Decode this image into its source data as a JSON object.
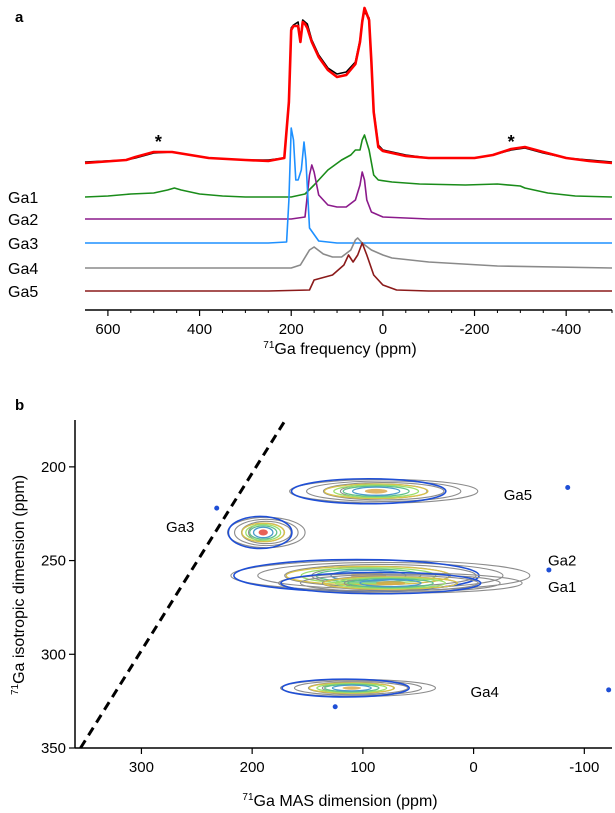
{
  "chart_data": [
    {
      "panel": "a",
      "type": "line",
      "xlabel_sup": "71",
      "xlabel": "Ga frequency (ppm)",
      "xlim": [
        650,
        -500
      ],
      "x_reversed": true,
      "xticks": [
        600,
        400,
        200,
        0,
        -200,
        -400
      ],
      "xtick_labels": [
        "600",
        "400",
        "200",
        "0",
        "-200",
        "-400"
      ],
      "annotations": [
        "*",
        "*"
      ],
      "annotation_x": [
        490,
        -280
      ],
      "series": [
        {
          "name": "",
          "color": "#000000",
          "points": [
            [
              650,
              162
            ],
            [
              560,
              160
            ],
            [
              540,
              158
            ],
            [
              500,
              153
            ],
            [
              460,
              152
            ],
            [
              420,
              155
            ],
            [
              380,
              158
            ],
            [
              300,
              160
            ],
            [
              250,
              160
            ],
            [
              215,
              158
            ],
            [
              205,
              100
            ],
            [
              200,
              28
            ],
            [
              195,
              25
            ],
            [
              185,
              22
            ],
            [
              180,
              40
            ],
            [
              175,
              20
            ],
            [
              170,
              22
            ],
            [
              165,
              24
            ],
            [
              155,
              40
            ],
            [
              140,
              55
            ],
            [
              120,
              68
            ],
            [
              100,
              74
            ],
            [
              80,
              72
            ],
            [
              60,
              62
            ],
            [
              50,
              40
            ],
            [
              45,
              20
            ],
            [
              40,
              12
            ],
            [
              30,
              18
            ],
            [
              25,
              60
            ],
            [
              20,
              110
            ],
            [
              10,
              145
            ],
            [
              0,
              150
            ],
            [
              -50,
              155
            ],
            [
              -100,
              158
            ],
            [
              -200,
              158
            ],
            [
              -240,
              155
            ],
            [
              -280,
              150
            ],
            [
              -310,
              148
            ],
            [
              -350,
              153
            ],
            [
              -400,
              158
            ],
            [
              -450,
              160
            ],
            [
              -500,
              162
            ]
          ]
        },
        {
          "name": "",
          "color": "#ff0000",
          "points": [
            [
              650,
              163
            ],
            [
              560,
              160
            ],
            [
              540,
              157
            ],
            [
              500,
              152
            ],
            [
              460,
              152
            ],
            [
              420,
              155
            ],
            [
              380,
              158
            ],
            [
              300,
              160
            ],
            [
              250,
              161
            ],
            [
              215,
              158
            ],
            [
              205,
              102
            ],
            [
              200,
              30
            ],
            [
              195,
              26
            ],
            [
              185,
              26
            ],
            [
              180,
              42
            ],
            [
              175,
              22
            ],
            [
              170,
              24
            ],
            [
              165,
              28
            ],
            [
              155,
              42
            ],
            [
              140,
              57
            ],
            [
              120,
              70
            ],
            [
              100,
              77
            ],
            [
              80,
              75
            ],
            [
              60,
              64
            ],
            [
              50,
              42
            ],
            [
              45,
              22
            ],
            [
              40,
              8
            ],
            [
              30,
              20
            ],
            [
              25,
              62
            ],
            [
              20,
              112
            ],
            [
              10,
              147
            ],
            [
              0,
              151
            ],
            [
              -50,
              156
            ],
            [
              -100,
              158
            ],
            [
              -200,
              158
            ],
            [
              -240,
              155
            ],
            [
              -280,
              149
            ],
            [
              -310,
              147
            ],
            [
              -350,
              152
            ],
            [
              -400,
              158
            ],
            [
              -450,
              161
            ],
            [
              -500,
              163
            ]
          ]
        },
        {
          "name": "Ga1",
          "color": "#1a8c1a",
          "points": [
            [
              650,
              197
            ],
            [
              600,
              196
            ],
            [
              550,
              194
            ],
            [
              500,
              193
            ],
            [
              470,
              190
            ],
            [
              455,
              188
            ],
            [
              440,
              190
            ],
            [
              400,
              194
            ],
            [
              350,
              196
            ],
            [
              300,
              197
            ],
            [
              250,
              197
            ],
            [
              200,
              197
            ],
            [
              170,
              194
            ],
            [
              150,
              185
            ],
            [
              120,
              170
            ],
            [
              90,
              160
            ],
            [
              70,
              155
            ],
            [
              60,
              150
            ],
            [
              50,
              150
            ],
            [
              45,
              140
            ],
            [
              40,
              135
            ],
            [
              30,
              150
            ],
            [
              20,
              175
            ],
            [
              10,
              180
            ],
            [
              -20,
              182
            ],
            [
              -80,
              184
            ],
            [
              -180,
              185
            ],
            [
              -250,
              184
            ],
            [
              -300,
              186
            ],
            [
              -310,
              188
            ],
            [
              -360,
              193
            ],
            [
              -420,
              196
            ],
            [
              -500,
              197
            ]
          ]
        },
        {
          "name": "Ga2",
          "color": "#8b1a8b",
          "points": [
            [
              650,
              219
            ],
            [
              300,
              219
            ],
            [
              200,
              219
            ],
            [
              170,
              217
            ],
            [
              160,
              175
            ],
            [
              155,
              165
            ],
            [
              150,
              172
            ],
            [
              140,
              195
            ],
            [
              120,
              205
            ],
            [
              100,
              207
            ],
            [
              80,
              207
            ],
            [
              60,
              200
            ],
            [
              50,
              185
            ],
            [
              45,
              172
            ],
            [
              40,
              180
            ],
            [
              35,
              200
            ],
            [
              25,
              212
            ],
            [
              0,
              217
            ],
            [
              -100,
              219
            ],
            [
              -500,
              219
            ]
          ]
        },
        {
          "name": "Ga3",
          "color": "#1e90ff",
          "points": [
            [
              650,
              243
            ],
            [
              250,
              243
            ],
            [
              210,
              242
            ],
            [
              205,
              200
            ],
            [
              200,
              128
            ],
            [
              195,
              140
            ],
            [
              190,
              180
            ],
            [
              185,
              180
            ],
            [
              178,
              170
            ],
            [
              172,
              142
            ],
            [
              168,
              160
            ],
            [
              160,
              228
            ],
            [
              140,
              241
            ],
            [
              100,
              243
            ],
            [
              -500,
              243
            ]
          ]
        },
        {
          "name": "Ga4",
          "color": "#8a8a8a",
          "points": [
            [
              650,
              268
            ],
            [
              300,
              268
            ],
            [
              200,
              268
            ],
            [
              180,
              265
            ],
            [
              160,
              250
            ],
            [
              150,
              247
            ],
            [
              130,
              254
            ],
            [
              110,
              257
            ],
            [
              90,
              257
            ],
            [
              70,
              250
            ],
            [
              60,
              240
            ],
            [
              55,
              238
            ],
            [
              45,
              243
            ],
            [
              25,
              250
            ],
            [
              0,
              255
            ],
            [
              -20,
              258
            ],
            [
              -100,
              262
            ],
            [
              -250,
              266
            ],
            [
              -500,
              268
            ]
          ]
        },
        {
          "name": "Ga5",
          "color": "#8b1a1a",
          "points": [
            [
              650,
              291
            ],
            [
              250,
              291
            ],
            [
              160,
              290
            ],
            [
              150,
              280
            ],
            [
              110,
              275
            ],
            [
              85,
              265
            ],
            [
              75,
              255
            ],
            [
              65,
              262
            ],
            [
              55,
              255
            ],
            [
              45,
              243
            ],
            [
              35,
              255
            ],
            [
              20,
              275
            ],
            [
              0,
              285
            ],
            [
              -30,
              290
            ],
            [
              -100,
              291
            ],
            [
              -500,
              291
            ]
          ]
        }
      ]
    },
    {
      "panel": "b",
      "type": "contour",
      "xlabel_sup": "71",
      "xlabel": "Ga MAS dimension (ppm)",
      "ylabel_sup": "71",
      "ylabel": "Ga isotropic dimension (ppm)",
      "xlim": [
        360,
        -125
      ],
      "ylim": [
        175,
        350
      ],
      "x_reversed": true,
      "xticks": [
        300,
        200,
        100,
        0,
        -100
      ],
      "xtick_labels": [
        "300",
        "200",
        "100",
        "0",
        "-100"
      ],
      "yticks": [
        200,
        250,
        300,
        350
      ],
      "ytick_labels": [
        "200",
        "250",
        "300",
        "350"
      ],
      "diagonal_line": [
        [
          355,
          350
        ],
        [
          170,
          175
        ]
      ],
      "peaks": [
        {
          "name": "Ga5",
          "cx": 88,
          "cy": 213,
          "rx": 85,
          "ry": 7,
          "label_x": -40,
          "label_y": 215
        },
        {
          "name": "Ga3",
          "cx": 190,
          "cy": 235,
          "rx": 35,
          "ry": 9,
          "label_x": 265,
          "label_y": 232
        },
        {
          "name": "Ga2",
          "cx": 95,
          "cy": 258,
          "rx": 135,
          "ry": 9,
          "label_x": -80,
          "label_y": 250
        },
        {
          "name": "Ga1",
          "cx": 75,
          "cy": 262,
          "rx": 110,
          "ry": 6,
          "label_x": -80,
          "label_y": 264
        },
        {
          "name": "Ga4",
          "cx": 110,
          "cy": 318,
          "rx": 70,
          "ry": 5,
          "label_x": -10,
          "label_y": 320
        }
      ]
    }
  ]
}
